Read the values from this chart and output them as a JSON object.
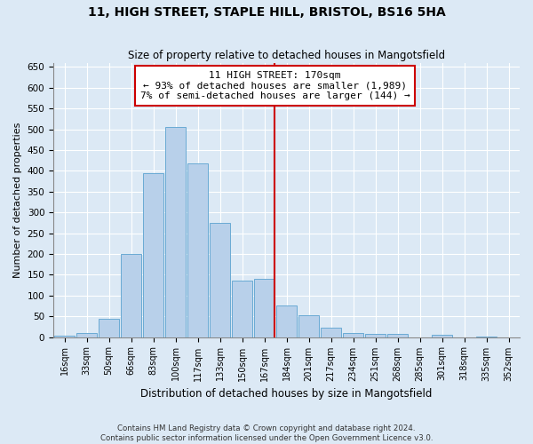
{
  "title": "11, HIGH STREET, STAPLE HILL, BRISTOL, BS16 5HA",
  "subtitle": "Size of property relative to detached houses in Mangotsfield",
  "xlabel": "Distribution of detached houses by size in Mangotsfield",
  "ylabel": "Number of detached properties",
  "bar_color": "#b8d0ea",
  "bar_edge_color": "#6aaad4",
  "background_color": "#dce9f5",
  "grid_color": "#ffffff",
  "vline_color": "#cc0000",
  "vline_x_index": 9,
  "annotation_text": "11 HIGH STREET: 170sqm\n← 93% of detached houses are smaller (1,989)\n7% of semi-detached houses are larger (144) →",
  "annotation_box_color": "#ffffff",
  "annotation_box_edge": "#cc0000",
  "categories": [
    "16sqm",
    "33sqm",
    "50sqm",
    "66sqm",
    "83sqm",
    "100sqm",
    "117sqm",
    "133sqm",
    "150sqm",
    "167sqm",
    "184sqm",
    "201sqm",
    "217sqm",
    "234sqm",
    "251sqm",
    "268sqm",
    "285sqm",
    "301sqm",
    "318sqm",
    "335sqm",
    "352sqm"
  ],
  "bar_heights": [
    3,
    10,
    45,
    200,
    395,
    505,
    418,
    275,
    135,
    140,
    75,
    52,
    22,
    10,
    8,
    7,
    0,
    5,
    0,
    2,
    0
  ],
  "ylim": [
    0,
    660
  ],
  "yticks": [
    0,
    50,
    100,
    150,
    200,
    250,
    300,
    350,
    400,
    450,
    500,
    550,
    600,
    650
  ],
  "footer_line1": "Contains HM Land Registry data © Crown copyright and database right 2024.",
  "footer_line2": "Contains public sector information licensed under the Open Government Licence v3.0."
}
